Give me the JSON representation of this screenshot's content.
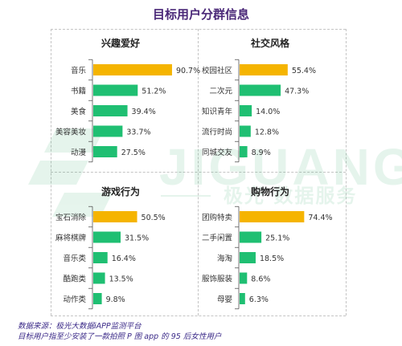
{
  "title": "目标用户分群信息",
  "colors": {
    "highlight": "#f5b400",
    "normal": "#1fbf72",
    "title": "#4a2878",
    "footer": "#3b2a88"
  },
  "watermark": {
    "brand": "JIGUANG",
    "cn": "极光 数据服务"
  },
  "footer": {
    "line1": "数据来源：极光大数据iAPP监测平台",
    "line2": "目标用户指至少安装了一款拍照 P 图 app 的 95 后女性用户"
  },
  "chart_data": [
    {
      "type": "bar",
      "orientation": "horizontal",
      "title": "兴趣爱好",
      "categories": [
        "音乐",
        "书籍",
        "美食",
        "美容美妆",
        "动漫"
      ],
      "values": [
        90.7,
        51.2,
        39.4,
        33.7,
        27.5
      ],
      "labels": [
        "90.7%",
        "51.2%",
        "39.4%",
        "33.7%",
        "27.5%"
      ],
      "highlight_index": 0,
      "xlim": [
        0,
        100
      ]
    },
    {
      "type": "bar",
      "orientation": "horizontal",
      "title": "社交风格",
      "categories": [
        "校园社区",
        "二次元",
        "知识青年",
        "流行时尚",
        "同城交友"
      ],
      "values": [
        55.4,
        47.3,
        14.0,
        12.8,
        8.9
      ],
      "labels": [
        "55.4%",
        "47.3%",
        "14.0%",
        "12.8%",
        "8.9%"
      ],
      "highlight_index": 0,
      "xlim": [
        0,
        100
      ]
    },
    {
      "type": "bar",
      "orientation": "horizontal",
      "title": "游戏行为",
      "categories": [
        "宝石消除",
        "麻将棋牌",
        "音乐类",
        "酷跑类",
        "动作类"
      ],
      "values": [
        50.5,
        31.5,
        16.4,
        13.5,
        9.8
      ],
      "labels": [
        "50.5%",
        "31.5%",
        "16.4%",
        "13.5%",
        "9.8%"
      ],
      "highlight_index": 0,
      "xlim": [
        0,
        100
      ]
    },
    {
      "type": "bar",
      "orientation": "horizontal",
      "title": "购物行为",
      "categories": [
        "团购特卖",
        "二手闲置",
        "海淘",
        "服饰服装",
        "母婴"
      ],
      "values": [
        74.4,
        25.1,
        18.5,
        8.6,
        6.3
      ],
      "labels": [
        "74.4%",
        "25.1%",
        "18.5%",
        "8.6%",
        "6.3%"
      ],
      "highlight_index": 0,
      "xlim": [
        0,
        100
      ]
    }
  ]
}
